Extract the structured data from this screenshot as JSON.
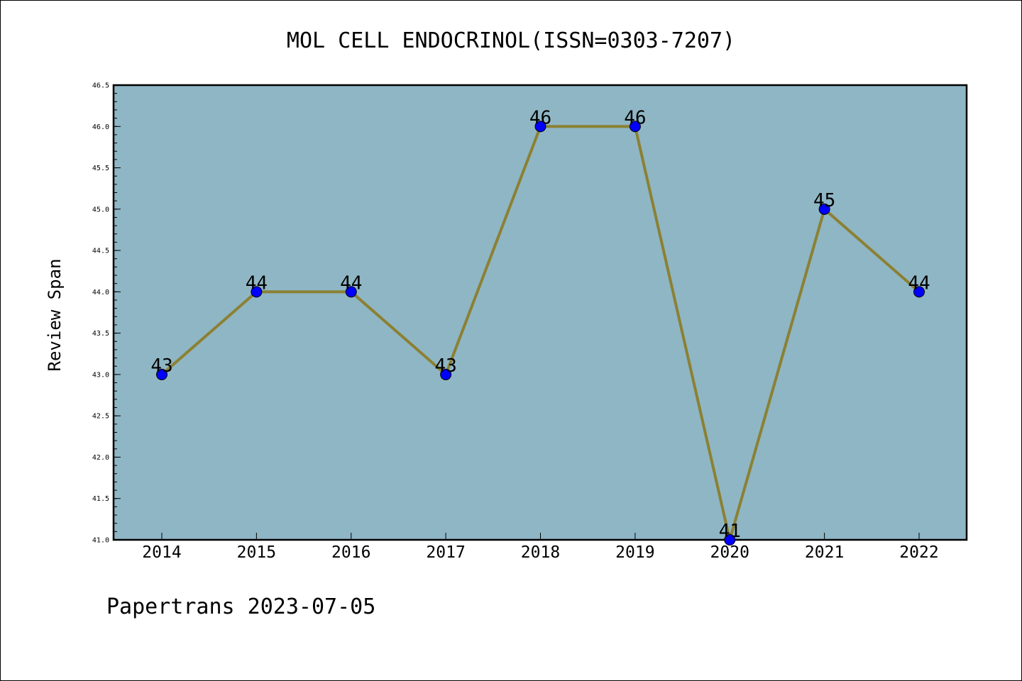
{
  "chart_data": {
    "type": "line",
    "title": "MOL CELL ENDOCRINOL(ISSN=0303-7207)",
    "xlabel": "",
    "ylabel": "Review Span",
    "categories": [
      "2014",
      "2015",
      "2016",
      "2017",
      "2018",
      "2019",
      "2020",
      "2021",
      "2022"
    ],
    "series": [
      {
        "values": [
          43,
          44,
          44,
          43,
          46,
          46,
          41,
          45,
          44
        ],
        "data_labels": [
          "43",
          "44",
          "44",
          "43",
          "46",
          "46",
          "41",
          "45",
          "44"
        ],
        "line_color": "#8b8133",
        "marker_color": "#0000ff"
      }
    ],
    "ylim": [
      41.0,
      46.5
    ],
    "yticks": [
      "41.0",
      "41.5",
      "42.0",
      "42.5",
      "43.0",
      "43.5",
      "44.0",
      "44.5",
      "45.0",
      "45.5",
      "46.0",
      "46.5"
    ],
    "grid": false,
    "plot_background": "#8fb6c5"
  },
  "footer": {
    "text": "Papertrans 2023-07-05"
  }
}
